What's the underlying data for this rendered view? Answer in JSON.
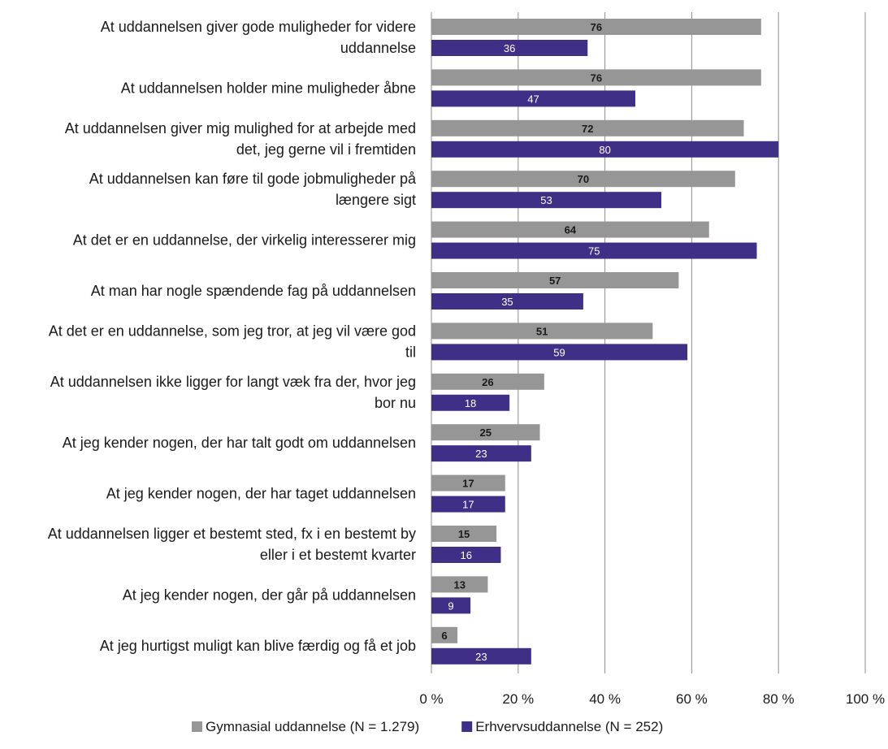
{
  "chart_data": {
    "type": "bar",
    "orientation": "horizontal",
    "grid": true,
    "legend_position": "bottom",
    "xlim": [
      0,
      100
    ],
    "x_ticks": [
      "0 %",
      "20 %",
      "40 %",
      "60 %",
      "80 %",
      "100 %"
    ],
    "categories": [
      "At uddannelsen giver gode muligheder for videre uddannelse",
      "At uddannelsen holder mine muligheder åbne",
      "At uddannelsen giver mig mulighed for at arbejde med det, jeg gerne vil i fremtiden",
      "At uddannelsen kan føre til gode jobmuligheder på længere sigt",
      "At det er en uddannelse, der virkelig interesserer mig",
      "At man har nogle spændende fag på uddannelsen",
      "At det er en uddannelse, som jeg tror, at jeg vil være god til",
      "At uddannelsen ikke ligger for langt væk fra der, hvor jeg bor nu",
      "At jeg kender nogen, der har talt godt om uddannelsen",
      "At jeg kender nogen, der har taget uddannelsen",
      "At uddannelsen ligger et bestemt sted, fx i en bestemt by eller i et bestemt kvarter",
      "At jeg kender nogen, der går på uddannelsen",
      "At jeg hurtigst muligt kan blive færdig og få et job"
    ],
    "category_lines": [
      [
        "At uddannelsen giver gode muligheder for videre",
        "uddannelse"
      ],
      [
        "At uddannelsen holder mine muligheder åbne"
      ],
      [
        "At uddannelsen giver mig mulighed for at arbejde med",
        "det, jeg gerne vil i fremtiden"
      ],
      [
        "At uddannelsen kan føre til gode jobmuligheder på",
        "længere sigt"
      ],
      [
        "At det er en uddannelse, der virkelig interesserer mig"
      ],
      [
        "At man har nogle spændende fag på uddannelsen"
      ],
      [
        "At det er en uddannelse, som jeg tror, at jeg vil være god",
        "til"
      ],
      [
        "At uddannelsen ikke ligger for langt væk fra der, hvor jeg",
        "bor nu"
      ],
      [
        "At jeg kender nogen, der har talt godt om uddannelsen"
      ],
      [
        "At jeg kender nogen, der har taget uddannelsen"
      ],
      [
        "At uddannelsen ligger et bestemt sted, fx i en bestemt by",
        "eller i et bestemt kvarter"
      ],
      [
        "At jeg kender nogen, der går på uddannelsen"
      ],
      [
        "At jeg hurtigst muligt kan blive færdig og få et job"
      ]
    ],
    "series": [
      {
        "name": "Gymnasial uddannelse (N = 1.279)",
        "color": "#969696",
        "label_color": "#1a1a1a",
        "label_bold": true,
        "values": [
          76,
          76,
          72,
          70,
          64,
          57,
          51,
          26,
          25,
          17,
          15,
          13,
          6
        ]
      },
      {
        "name": "Erhvervsuddannelse (N = 252)",
        "color": "#3f2f86",
        "label_color": "#ffffff",
        "label_bold": false,
        "values": [
          36,
          47,
          80,
          53,
          75,
          35,
          59,
          18,
          23,
          17,
          16,
          9,
          23
        ]
      }
    ],
    "colors": {
      "grid": "#8c8c8c",
      "text": "#1a1a1a"
    }
  }
}
